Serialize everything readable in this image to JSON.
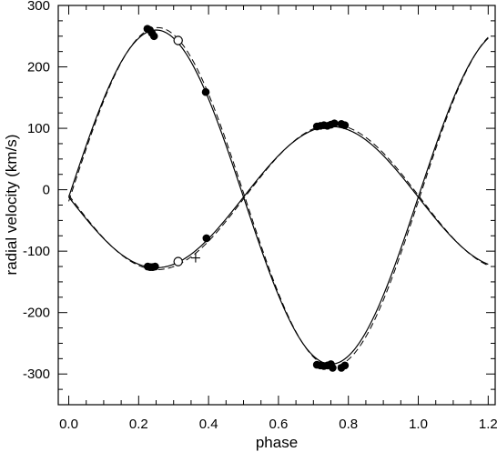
{
  "chart_data": {
    "type": "scatter",
    "title": "",
    "xlabel": "phase",
    "ylabel": "radial velocity (km/s)",
    "xlim": [
      -0.03,
      1.22
    ],
    "ylim": [
      -350,
      300
    ],
    "x_ticks": [
      "0.0",
      "0.2",
      "0.4",
      "0.6",
      "0.8",
      "1.0",
      "1.2"
    ],
    "x_tick_values": [
      0.0,
      0.2,
      0.4,
      0.6,
      0.8,
      1.0,
      1.2
    ],
    "y_ticks": [
      "300",
      "200",
      "100",
      "0",
      "-100",
      "-200",
      "-300"
    ],
    "y_tick_values": [
      300,
      200,
      100,
      0,
      -100,
      -200,
      -300
    ],
    "grid": false,
    "legend": "none",
    "series": [
      {
        "marker": "filled-circle",
        "points": [
          [
            0.225,
            262
          ],
          [
            0.232,
            260
          ],
          [
            0.238,
            255
          ],
          [
            0.244,
            250
          ],
          [
            0.392,
            159
          ],
          [
            0.226,
            -125
          ],
          [
            0.233,
            -126
          ],
          [
            0.24,
            -126
          ],
          [
            0.247,
            -125
          ],
          [
            0.394,
            -79
          ],
          [
            0.71,
            103
          ],
          [
            0.72,
            104
          ],
          [
            0.73,
            105
          ],
          [
            0.74,
            104
          ],
          [
            0.75,
            106
          ],
          [
            0.76,
            108
          ],
          [
            0.78,
            107
          ],
          [
            0.79,
            105
          ],
          [
            0.71,
            -285
          ],
          [
            0.72,
            -286
          ],
          [
            0.73,
            -287
          ],
          [
            0.74,
            -286
          ],
          [
            0.75,
            -284
          ],
          [
            0.755,
            -290
          ],
          [
            0.78,
            -290
          ],
          [
            0.79,
            -286
          ]
        ]
      },
      {
        "marker": "open-circle",
        "points": [
          [
            0.313,
            243
          ],
          [
            0.313,
            -117
          ]
        ]
      },
      {
        "marker": "plus",
        "points": [
          [
            0.363,
            -111
          ]
        ]
      }
    ],
    "model_curves": {
      "gamma": -12,
      "primary_amplitude": 115,
      "secondary_amplitude": 272,
      "phase_offset": 0.0,
      "x_range": [
        0.0,
        1.2
      ],
      "styles": [
        "solid",
        "dashed"
      ]
    }
  }
}
